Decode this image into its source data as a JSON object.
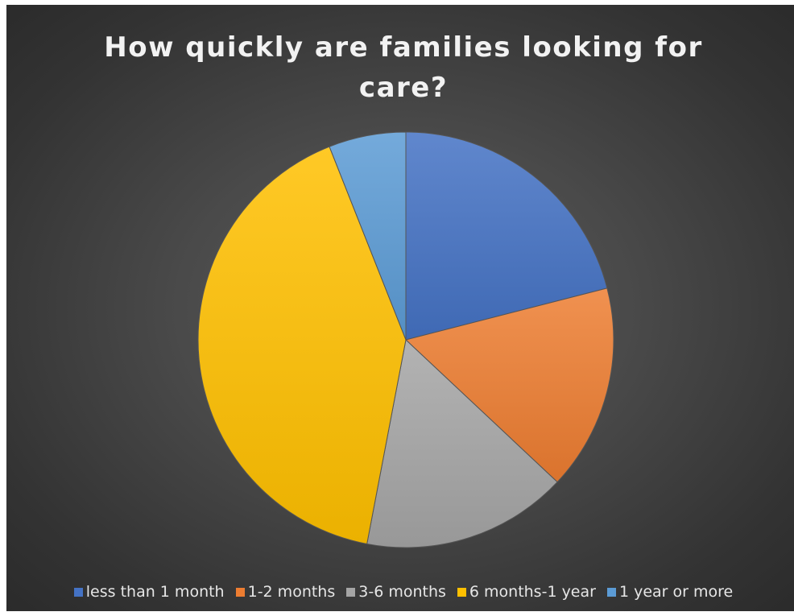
{
  "chart_data": {
    "type": "pie",
    "title_lines": [
      "How quickly are families looking for",
      "care?"
    ],
    "categories": [
      "less than 1 month",
      "1-2 months",
      "3-6 months",
      "6 months-1 year",
      "1 year or more"
    ],
    "values": [
      21,
      16,
      16,
      41,
      6
    ],
    "colors": [
      "#4472c4",
      "#ed7d31",
      "#a5a5a5",
      "#ffc000",
      "#5b9bd5"
    ],
    "legend_position": "bottom"
  }
}
